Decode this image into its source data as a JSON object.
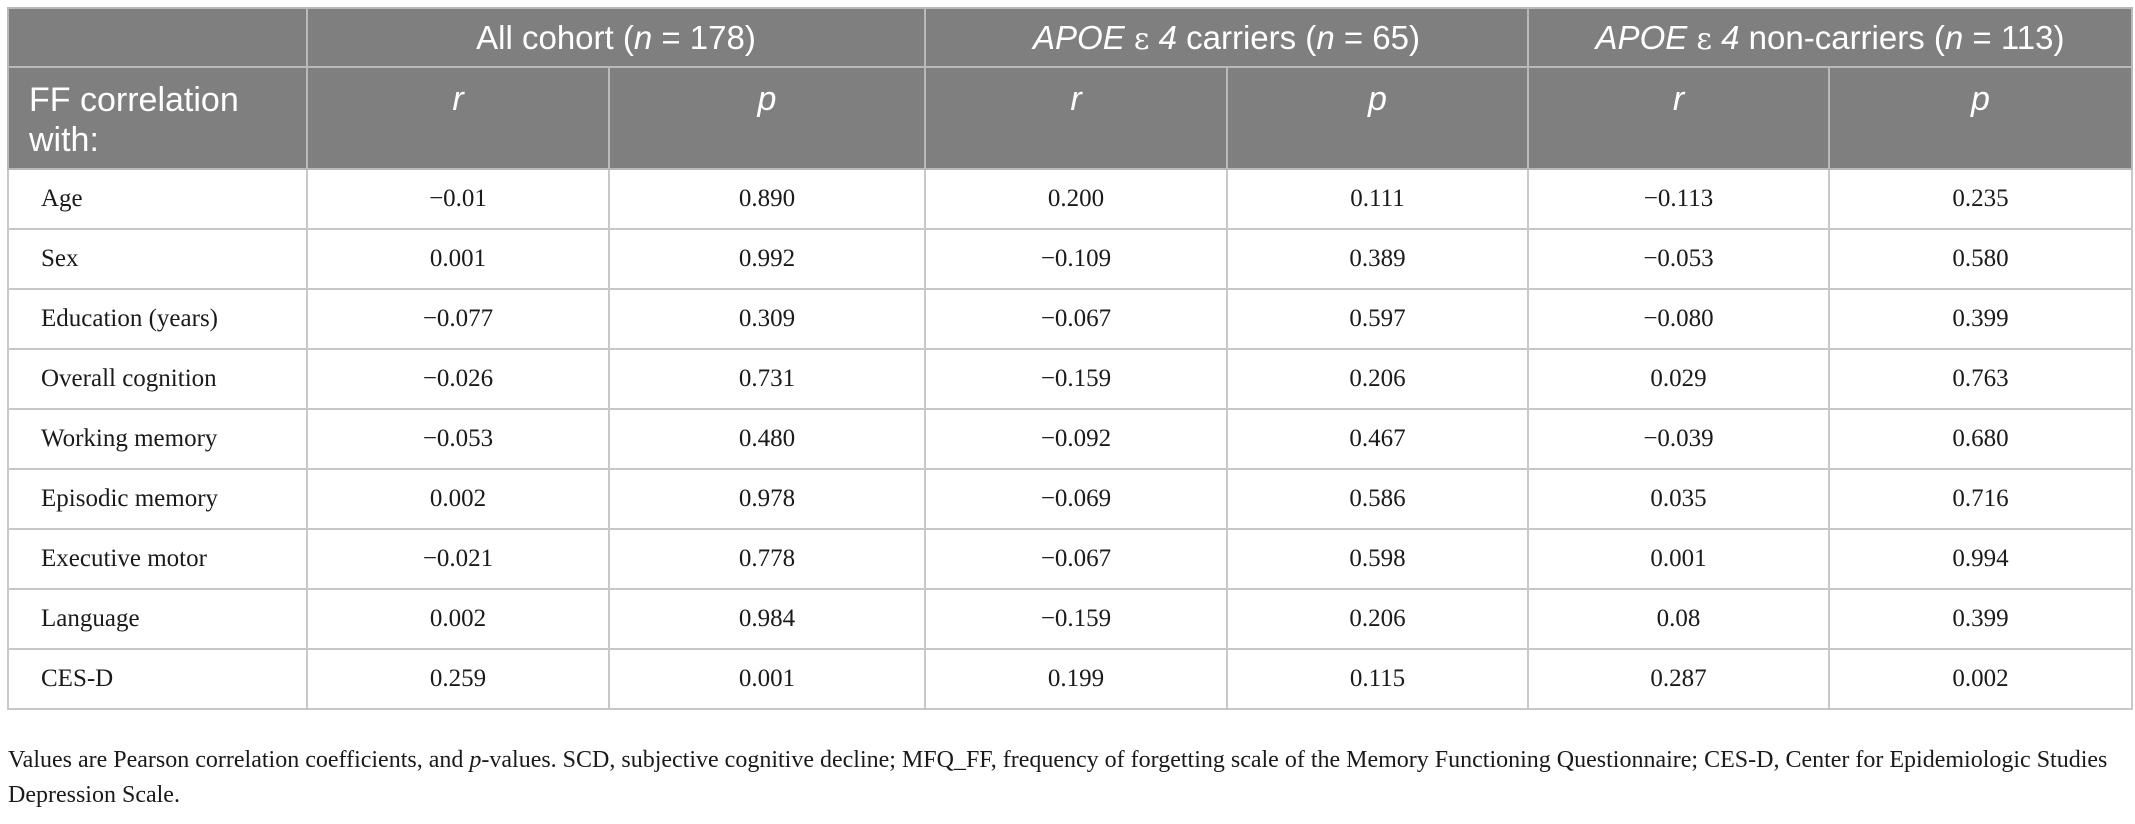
{
  "header": {
    "groups": [
      {
        "prefix": "All cohort (",
        "n_label": "n",
        "rest": " = 178)"
      },
      {
        "gene": "APOE",
        "eps": "ε",
        "allele": " 4",
        "suffix": " carriers (",
        "n_label": "n",
        "rest": " = 65)"
      },
      {
        "gene": "APOE",
        "eps": "ε",
        "allele": " 4",
        "suffix": " non-carriers (",
        "n_label": "n",
        "rest": " = 113)"
      }
    ],
    "row_label": "FF correlation with:",
    "r": "r",
    "p": "p"
  },
  "rows": [
    {
      "label": "Age",
      "values": [
        "−0.01",
        "0.890",
        "0.200",
        "0.111",
        "−0.113",
        "0.235"
      ]
    },
    {
      "label": "Sex",
      "values": [
        "0.001",
        "0.992",
        "−0.109",
        "0.389",
        "−0.053",
        "0.580"
      ]
    },
    {
      "label": "Education (years)",
      "values": [
        "−0.077",
        "0.309",
        "−0.067",
        "0.597",
        "−0.080",
        "0.399"
      ]
    },
    {
      "label": "Overall cognition",
      "values": [
        "−0.026",
        "0.731",
        "−0.159",
        "0.206",
        "0.029",
        "0.763"
      ]
    },
    {
      "label": "Working memory",
      "values": [
        "−0.053",
        "0.480",
        "−0.092",
        "0.467",
        "−0.039",
        "0.680"
      ]
    },
    {
      "label": "Episodic memory",
      "values": [
        "0.002",
        "0.978",
        "−0.069",
        "0.586",
        "0.035",
        "0.716"
      ]
    },
    {
      "label": "Executive motor",
      "values": [
        "−0.021",
        "0.778",
        "−0.067",
        "0.598",
        "0.001",
        "0.994"
      ]
    },
    {
      "label": "Language",
      "values": [
        "0.002",
        "0.984",
        "−0.159",
        "0.206",
        "0.08",
        "0.399"
      ]
    },
    {
      "label": "CES-D",
      "values": [
        "0.259",
        "0.001",
        "0.199",
        "0.115",
        "0.287",
        "0.002"
      ]
    }
  ],
  "footnote": {
    "part1": "Values are Pearson correlation coefficients, and ",
    "p_italic": "p",
    "part2": "-values. SCD, subjective cognitive decline; MFQ_FF, frequency of forgetting scale of the Memory Functioning Questionnaire; CES-D, Center for Epidemiologic Studies Depression Scale."
  },
  "colors": {
    "header_bg": "#7f7f7f",
    "header_text": "#ffffff",
    "grid": "#c8c8c8"
  }
}
